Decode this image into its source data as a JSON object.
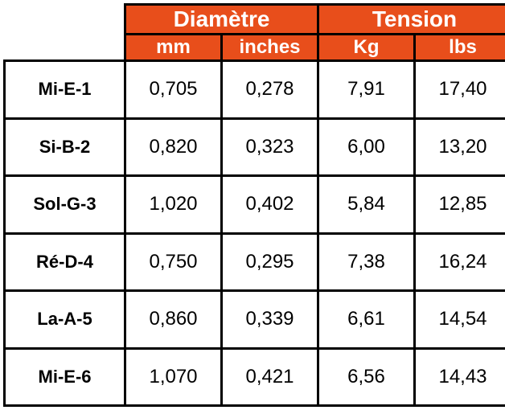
{
  "table": {
    "type": "table",
    "header_bg": "#e84e1b",
    "header_fg": "#ffffff",
    "cell_bg": "#ffffff",
    "cell_fg": "#000000",
    "border_color": "#000000",
    "border_width": 3,
    "group_font_size": 28,
    "unit_font_size": 24,
    "label_font_size": 22,
    "data_font_size": 24,
    "groups": [
      {
        "label": "Diamètre",
        "span": 2
      },
      {
        "label": "Tension",
        "span": 2
      }
    ],
    "columns": [
      "mm",
      "inches",
      "Kg",
      "lbs"
    ],
    "row_labels": [
      "Mi-E-1",
      "Si-B-2",
      "Sol-G-3",
      "Ré-D-4",
      "La-A-5",
      "Mi-E-6"
    ],
    "rows": [
      [
        "0,705",
        "0,278",
        "7,91",
        "17,40"
      ],
      [
        "0,820",
        "0,323",
        "6,00",
        "13,20"
      ],
      [
        "1,020",
        "0,402",
        "5,84",
        "12,85"
      ],
      [
        "0,750",
        "0,295",
        "7,38",
        "16,24"
      ],
      [
        "0,860",
        "0,339",
        "6,61",
        "14,54"
      ],
      [
        "1,070",
        "0,421",
        "6,56",
        "14,43"
      ]
    ]
  }
}
